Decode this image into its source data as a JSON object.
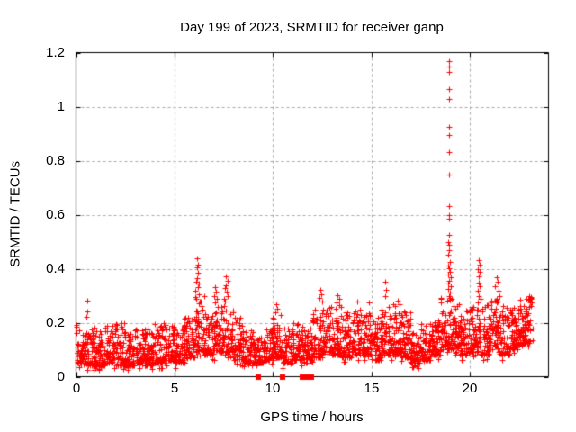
{
  "window": {
    "background": "#ffffff"
  },
  "chart_data": {
    "type": "scatter",
    "title": "Day 199 of 2023, SRMTID for receiver ganp",
    "xlabel": "GPS time / hours",
    "ylabel": "SRMTID / TECUs",
    "xlim": [
      0,
      24
    ],
    "ylim": [
      0,
      1.2
    ],
    "xticks": [
      0,
      5,
      10,
      15,
      20
    ],
    "xtick_labels": [
      "0",
      "5",
      "10",
      "15",
      "20"
    ],
    "yticks": [
      0,
      0.2,
      0.4,
      0.6,
      0.8,
      1,
      1.2
    ],
    "ytick_labels": [
      "0",
      "0.2",
      "0.4",
      "0.6",
      "0.8",
      "1",
      "1.2"
    ],
    "grid": {
      "show": true,
      "style": "dashed",
      "color": "#a8a8a8"
    },
    "axis_color": "#000000",
    "background_color": "#ffffff",
    "legend": "none",
    "data_span_hours": [
      0,
      23.2
    ],
    "series": [
      {
        "name": "SRMTID",
        "marker": "plus",
        "color": "#ff0000",
        "marker_size": 7,
        "points_per_hour": 120,
        "band_bias_exponent": 1.8,
        "band_segments": [
          [
            0.0,
            0.5,
            0.05,
            0.2
          ],
          [
            0.5,
            1.0,
            0.04,
            0.19
          ],
          [
            1.0,
            1.5,
            0.04,
            0.17
          ],
          [
            1.5,
            2.0,
            0.05,
            0.19
          ],
          [
            2.0,
            2.5,
            0.04,
            0.2
          ],
          [
            2.5,
            3.0,
            0.04,
            0.16
          ],
          [
            3.0,
            3.5,
            0.05,
            0.18
          ],
          [
            3.5,
            4.0,
            0.04,
            0.19
          ],
          [
            4.0,
            4.5,
            0.05,
            0.21
          ],
          [
            4.5,
            5.0,
            0.06,
            0.2
          ],
          [
            5.0,
            5.5,
            0.05,
            0.18
          ],
          [
            5.5,
            6.0,
            0.07,
            0.22
          ],
          [
            6.0,
            6.5,
            0.09,
            0.3
          ],
          [
            6.5,
            7.0,
            0.08,
            0.24
          ],
          [
            7.0,
            7.5,
            0.09,
            0.27
          ],
          [
            7.5,
            8.0,
            0.09,
            0.27
          ],
          [
            8.0,
            8.5,
            0.06,
            0.22
          ],
          [
            8.5,
            9.0,
            0.05,
            0.18
          ],
          [
            9.0,
            9.5,
            0.05,
            0.15
          ],
          [
            9.5,
            10.0,
            0.06,
            0.18
          ],
          [
            10.0,
            10.5,
            0.07,
            0.23
          ],
          [
            10.5,
            11.0,
            0.05,
            0.18
          ],
          [
            11.0,
            11.5,
            0.06,
            0.2
          ],
          [
            11.5,
            12.0,
            0.05,
            0.18
          ],
          [
            12.0,
            12.5,
            0.07,
            0.25
          ],
          [
            12.5,
            13.0,
            0.09,
            0.27
          ],
          [
            13.0,
            13.5,
            0.08,
            0.27
          ],
          [
            13.5,
            14.0,
            0.07,
            0.24
          ],
          [
            14.0,
            14.5,
            0.08,
            0.26
          ],
          [
            14.5,
            15.0,
            0.08,
            0.25
          ],
          [
            15.0,
            15.5,
            0.06,
            0.22
          ],
          [
            15.5,
            16.0,
            0.08,
            0.26
          ],
          [
            16.0,
            16.5,
            0.08,
            0.27
          ],
          [
            16.5,
            17.0,
            0.07,
            0.25
          ],
          [
            17.0,
            17.5,
            0.05,
            0.17
          ],
          [
            17.5,
            18.0,
            0.06,
            0.2
          ],
          [
            18.0,
            18.5,
            0.08,
            0.22
          ],
          [
            18.5,
            19.0,
            0.1,
            0.3
          ],
          [
            19.0,
            19.5,
            0.1,
            0.29
          ],
          [
            19.5,
            20.0,
            0.08,
            0.25
          ],
          [
            20.0,
            20.5,
            0.09,
            0.27
          ],
          [
            20.5,
            21.0,
            0.08,
            0.27
          ],
          [
            21.0,
            21.5,
            0.1,
            0.29
          ],
          [
            21.5,
            22.0,
            0.08,
            0.27
          ],
          [
            22.0,
            22.5,
            0.1,
            0.27
          ],
          [
            22.5,
            23.2,
            0.12,
            0.3
          ]
        ],
        "peak_points": [
          [
            18.93,
            1.17
          ],
          [
            18.96,
            1.148
          ],
          [
            18.94,
            1.128
          ],
          [
            18.95,
            1.065
          ],
          [
            18.97,
            1.028
          ],
          [
            18.93,
            0.925
          ],
          [
            18.95,
            0.895
          ],
          [
            18.95,
            0.833
          ],
          [
            18.96,
            0.748
          ],
          [
            18.93,
            0.63
          ],
          [
            18.94,
            0.597
          ],
          [
            18.96,
            0.585
          ],
          [
            18.94,
            0.525
          ],
          [
            18.92,
            0.5
          ],
          [
            18.97,
            0.488
          ],
          [
            18.95,
            0.467
          ],
          [
            18.92,
            0.452
          ],
          [
            18.98,
            0.425
          ],
          [
            18.91,
            0.412
          ],
          [
            18.95,
            0.402
          ],
          [
            19.0,
            0.39
          ],
          [
            18.89,
            0.38
          ],
          [
            19.03,
            0.367
          ],
          [
            18.96,
            0.355
          ],
          [
            18.9,
            0.344
          ],
          [
            19.05,
            0.334
          ],
          [
            18.88,
            0.324
          ],
          [
            19.0,
            0.312
          ],
          [
            18.93,
            0.3
          ],
          [
            19.08,
            0.29
          ],
          [
            18.87,
            0.281
          ],
          [
            20.44,
            0.432
          ],
          [
            20.48,
            0.415
          ],
          [
            20.42,
            0.4
          ],
          [
            20.5,
            0.39
          ],
          [
            20.45,
            0.372
          ],
          [
            20.47,
            0.35
          ],
          [
            20.52,
            0.335
          ],
          [
            20.43,
            0.318
          ],
          [
            20.46,
            0.3
          ],
          [
            20.55,
            0.288
          ],
          [
            20.4,
            0.275
          ],
          [
            6.15,
            0.44
          ],
          [
            6.18,
            0.415
          ],
          [
            6.13,
            0.405
          ],
          [
            6.2,
            0.385
          ],
          [
            6.16,
            0.365
          ],
          [
            6.1,
            0.352
          ],
          [
            6.22,
            0.345
          ],
          [
            6.18,
            0.332
          ],
          [
            6.05,
            0.318
          ],
          [
            6.25,
            0.305
          ],
          [
            6.12,
            0.29
          ],
          [
            6.3,
            0.28
          ],
          [
            7.08,
            0.332
          ],
          [
            7.12,
            0.315
          ],
          [
            7.02,
            0.3
          ],
          [
            7.15,
            0.288
          ],
          [
            7.06,
            0.275
          ],
          [
            7.62,
            0.372
          ],
          [
            7.68,
            0.355
          ],
          [
            7.6,
            0.34
          ],
          [
            7.55,
            0.328
          ],
          [
            7.65,
            0.315
          ],
          [
            7.72,
            0.3
          ],
          [
            7.52,
            0.29
          ],
          [
            7.58,
            0.278
          ],
          [
            0.55,
            0.283
          ],
          [
            0.57,
            0.242
          ],
          [
            0.53,
            0.222
          ],
          [
            10.15,
            0.268
          ],
          [
            10.2,
            0.252
          ],
          [
            10.12,
            0.24
          ],
          [
            12.4,
            0.322
          ],
          [
            12.45,
            0.305
          ],
          [
            12.35,
            0.292
          ],
          [
            12.5,
            0.28
          ],
          [
            13.3,
            0.302
          ],
          [
            13.35,
            0.288
          ],
          [
            13.25,
            0.275
          ],
          [
            14.3,
            0.278
          ],
          [
            14.9,
            0.275
          ],
          [
            15.72,
            0.352
          ],
          [
            15.76,
            0.322
          ],
          [
            15.68,
            0.3
          ],
          [
            16.35,
            0.282
          ],
          [
            16.42,
            0.27
          ],
          [
            21.35,
            0.37
          ],
          [
            21.42,
            0.352
          ],
          [
            21.3,
            0.335
          ],
          [
            21.48,
            0.318
          ],
          [
            21.52,
            0.3
          ],
          [
            21.38,
            0.29
          ],
          [
            23.0,
            0.3
          ],
          [
            22.95,
            0.288
          ],
          [
            23.05,
            0.275
          ],
          [
            23.1,
            0.262
          ]
        ],
        "zero_points": {
          "marker": "square",
          "y": 0,
          "x": [
            9.25,
            10.47,
            11.5,
            11.66,
            11.94
          ]
        }
      }
    ]
  }
}
